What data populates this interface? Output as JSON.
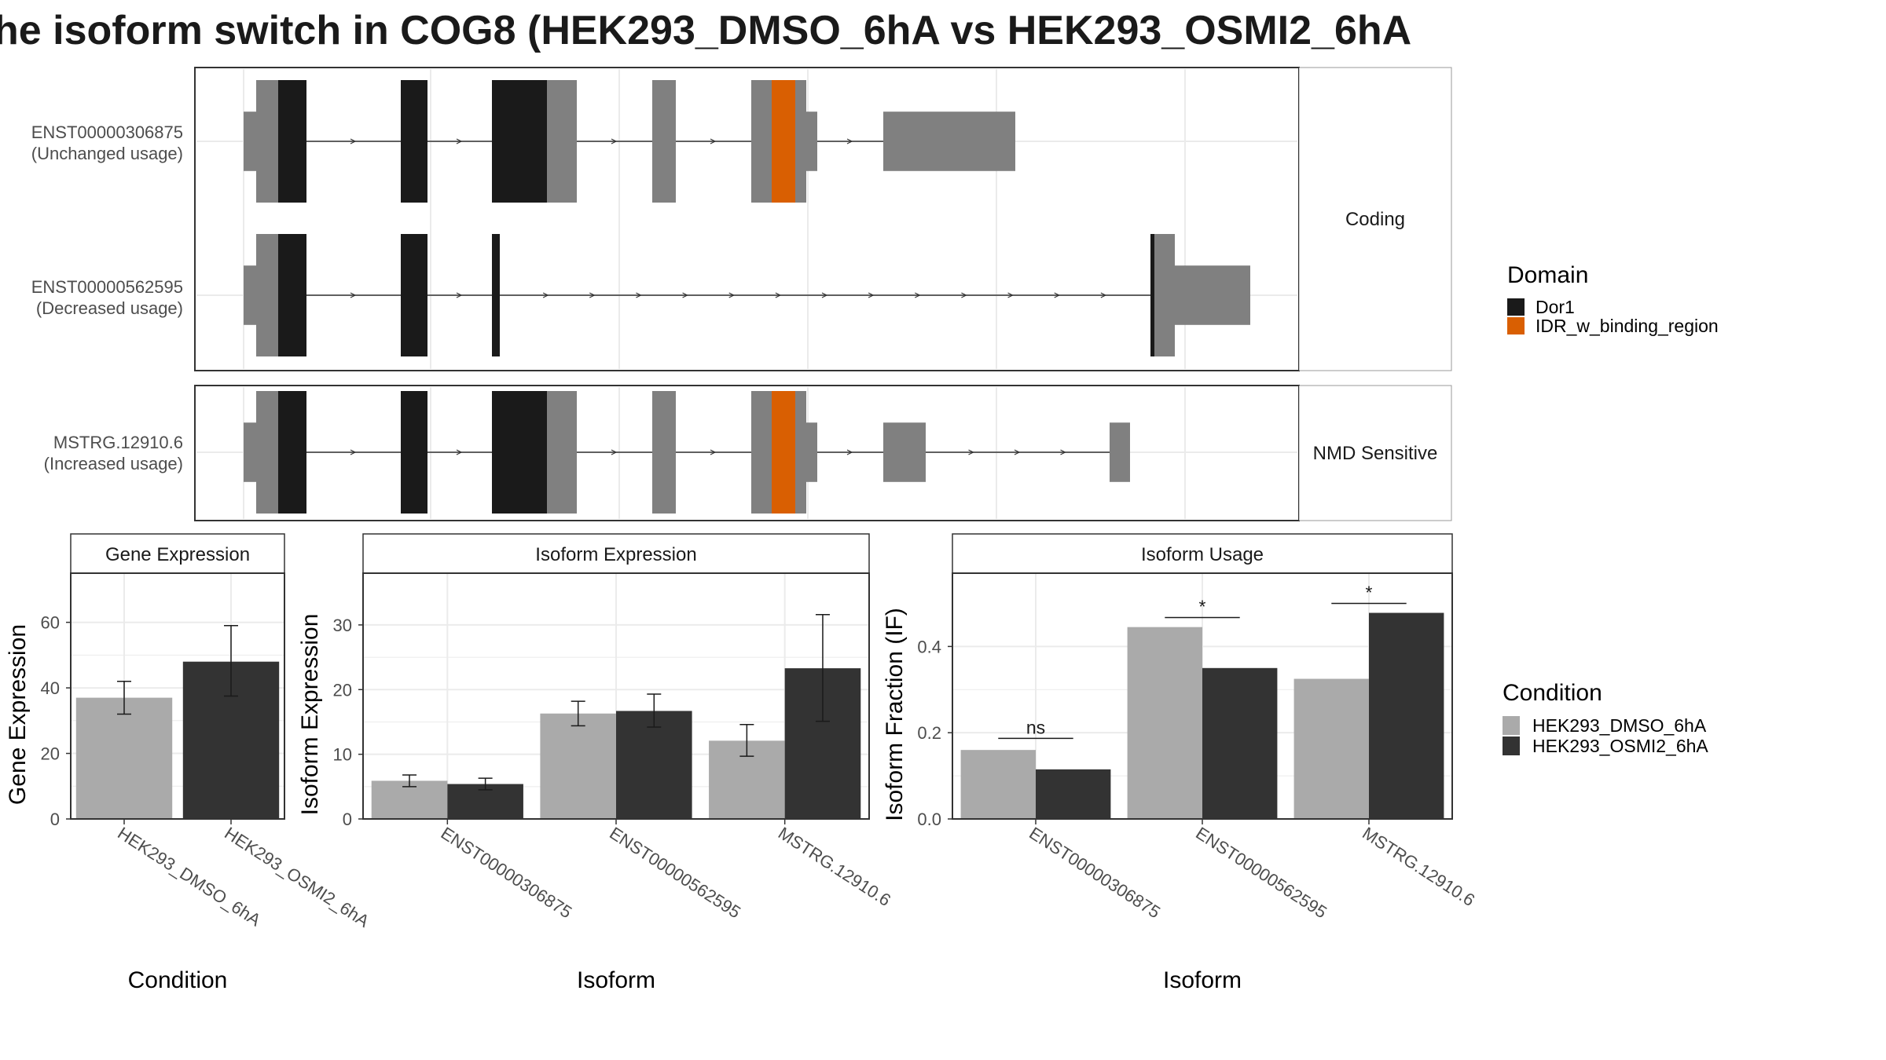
{
  "title": "he isoform switch in COG8 (HEK293_DMSO_6hA vs HEK293_OSMI2_6hA",
  "colors": {
    "exon": "#808080",
    "dor1": "#1a1a1a",
    "idr": "#d95f02",
    "dmso": "#aaaaaa",
    "osmi2": "#333333",
    "grid": "#ebebeb",
    "border": "#333333"
  },
  "structure": {
    "facets": [
      {
        "label": "Coding",
        "transcripts": [
          {
            "id": "ENST00000306875",
            "usage": "(Unchanged usage)"
          },
          {
            "id": "ENST00000562595",
            "usage": "(Decreased usage)"
          }
        ]
      },
      {
        "label": "NMD Sensitive",
        "transcripts": [
          {
            "id": "MSTRG.12910.6",
            "usage": "(Increased usage)"
          }
        ]
      }
    ]
  },
  "legend_domain": {
    "title": "Domain",
    "items": [
      {
        "label": "Dor1",
        "color": "#1a1a1a"
      },
      {
        "label": "IDR_w_binding_region",
        "color": "#d95f02"
      }
    ]
  },
  "legend_condition": {
    "title": "Condition",
    "items": [
      {
        "label": "HEK293_DMSO_6hA",
        "color": "#aaaaaa"
      },
      {
        "label": "HEK293_OSMI2_6hA",
        "color": "#333333"
      }
    ]
  },
  "chart_data": [
    {
      "type": "bar",
      "strip": "Gene Expression",
      "xlabel": "Condition",
      "ylabel": "Gene Expression",
      "ylim": [
        0,
        75
      ],
      "yticks": [
        0,
        20,
        40,
        60
      ],
      "categories": [
        "HEK293_DMSO_6hA",
        "HEK293_OSMI2_6hA"
      ],
      "values": [
        37,
        48
      ],
      "errors_low": [
        32,
        37.5
      ],
      "errors_high": [
        42,
        59
      ]
    },
    {
      "type": "bar",
      "strip": "Isoform Expression",
      "xlabel": "Isoform",
      "ylabel": "Isoform Expression",
      "ylim": [
        0,
        38
      ],
      "yticks": [
        0,
        10,
        20,
        30
      ],
      "categories": [
        "ENST00000306875",
        "ENST00000562595",
        "MSTRG.12910.6"
      ],
      "series": [
        {
          "name": "HEK293_DMSO_6hA",
          "values": [
            5.9,
            16.3,
            12.1
          ],
          "errors_low": [
            5.0,
            14.4,
            9.7
          ],
          "errors_high": [
            6.8,
            18.2,
            14.6
          ]
        },
        {
          "name": "HEK293_OSMI2_6hA",
          "values": [
            5.4,
            16.7,
            23.3
          ],
          "errors_low": [
            4.5,
            14.2,
            15.1
          ],
          "errors_high": [
            6.3,
            19.3,
            31.6
          ]
        }
      ]
    },
    {
      "type": "bar",
      "strip": "Isoform Usage",
      "xlabel": "Isoform",
      "ylabel": "Isoform Fraction (IF)",
      "ylim": [
        0,
        0.57
      ],
      "yticks": [
        "0.0",
        "0.2",
        "0.4"
      ],
      "categories": [
        "ENST00000306875",
        "ENST00000562595",
        "MSTRG.12910.6"
      ],
      "series": [
        {
          "name": "HEK293_DMSO_6hA",
          "values": [
            0.16,
            0.445,
            0.325
          ]
        },
        {
          "name": "HEK293_OSMI2_6hA",
          "values": [
            0.115,
            0.35,
            0.478
          ]
        }
      ],
      "significance": [
        "ns",
        "*",
        "*"
      ],
      "significance_y": [
        0.187,
        0.467,
        0.5
      ]
    }
  ]
}
